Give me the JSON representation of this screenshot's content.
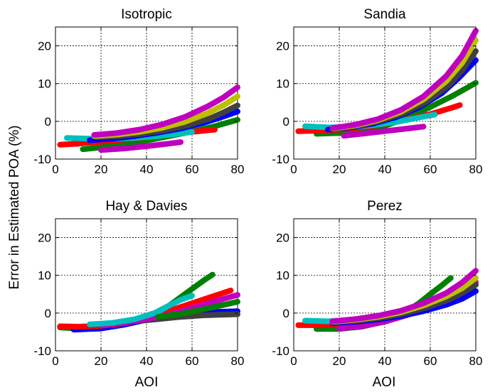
{
  "ylabel": "Error in Estimated POA (%)",
  "xlabel": "AOI",
  "chart_data": [
    {
      "type": "line",
      "title": "Isotropic",
      "xlim": [
        0,
        80
      ],
      "ylim": [
        -10,
        25
      ],
      "xticks": [
        0,
        20,
        40,
        60,
        80
      ],
      "yticks": [
        -10,
        0,
        10,
        20
      ],
      "grid": true,
      "series": [
        {
          "color": "#008000",
          "x": [
            12,
            20,
            30,
            40,
            50,
            60,
            70,
            80
          ],
          "y": [
            -7.4,
            -6.9,
            -6.1,
            -5.1,
            -3.9,
            -2.7,
            -1.3,
            0.4
          ]
        },
        {
          "color": "#ff0000",
          "x": [
            2,
            10,
            20,
            30,
            40,
            50,
            60,
            70
          ],
          "y": [
            -6.2,
            -5.9,
            -5.4,
            -4.8,
            -4.2,
            -3.5,
            -2.8,
            -2.2
          ]
        },
        {
          "color": "#bf00bf",
          "x": [
            20,
            30,
            40,
            50,
            55
          ],
          "y": [
            -7.6,
            -7.2,
            -6.6,
            -5.9,
            -5.5
          ]
        },
        {
          "color": "#00bfbf",
          "x": [
            5,
            15,
            25,
            35,
            45,
            55,
            60
          ],
          "y": [
            -4.4,
            -4.6,
            -4.6,
            -4.4,
            -3.9,
            -3.2,
            -2.8
          ]
        },
        {
          "color": "#0000ff",
          "x": [
            15,
            25,
            35,
            45,
            55,
            65,
            72,
            80
          ],
          "y": [
            -5.0,
            -4.6,
            -3.9,
            -3.0,
            -1.9,
            -0.4,
            0.9,
            2.6
          ]
        },
        {
          "color": "#404040",
          "x": [
            18,
            28,
            38,
            48,
            58,
            68,
            74,
            80
          ],
          "y": [
            -4.2,
            -3.9,
            -3.3,
            -2.4,
            -1.1,
            0.8,
            2.4,
            4.2
          ]
        },
        {
          "color": "#bfbf00",
          "x": [
            17,
            27,
            37,
            47,
            57,
            67,
            74,
            80
          ],
          "y": [
            -3.9,
            -3.5,
            -2.8,
            -1.7,
            -0.1,
            2.2,
            4.3,
            6.6
          ]
        },
        {
          "color": "#bf00bf",
          "x": [
            17,
            27,
            37,
            47,
            57,
            67,
            74,
            80
          ],
          "y": [
            -3.6,
            -3.1,
            -2.2,
            -0.8,
            1.2,
            4.0,
            6.4,
            9.0
          ]
        }
      ]
    },
    {
      "type": "line",
      "title": "Sandia",
      "xlim": [
        0,
        80
      ],
      "ylim": [
        -10,
        25
      ],
      "xticks": [
        0,
        20,
        40,
        60,
        80
      ],
      "yticks": [
        -10,
        0,
        10,
        20
      ],
      "grid": true,
      "series": [
        {
          "color": "#008000",
          "x": [
            10,
            20,
            30,
            40,
            50,
            60,
            70,
            80
          ],
          "y": [
            -3.3,
            -3.1,
            -2.5,
            -1.2,
            0.9,
            3.8,
            6.8,
            10.2
          ]
        },
        {
          "color": "#ff0000",
          "x": [
            2,
            10,
            20,
            30,
            40,
            50,
            60,
            70,
            73
          ],
          "y": [
            -2.6,
            -2.5,
            -2.2,
            -1.6,
            -0.7,
            0.5,
            1.9,
            3.7,
            4.3
          ]
        },
        {
          "color": "#bf00bf",
          "x": [
            22,
            30,
            40,
            50,
            57
          ],
          "y": [
            -3.8,
            -3.3,
            -2.6,
            -1.9,
            -1.4
          ]
        },
        {
          "color": "#00bfbf",
          "x": [
            5,
            15,
            25,
            35,
            45,
            55,
            62
          ],
          "y": [
            -1.3,
            -1.6,
            -1.5,
            -1.0,
            -0.2,
            1.0,
            1.8
          ]
        },
        {
          "color": "#0000ff",
          "x": [
            15,
            25,
            35,
            45,
            55,
            65,
            72,
            80
          ],
          "y": [
            -2.2,
            -1.6,
            -0.6,
            1.1,
            3.7,
            7.4,
            11.2,
            16.2
          ]
        },
        {
          "color": "#404040",
          "x": [
            18,
            28,
            38,
            48,
            58,
            68,
            74,
            80
          ],
          "y": [
            -2.0,
            -1.2,
            0.1,
            2.1,
            5.1,
            9.5,
            13.5,
            18.6
          ]
        },
        {
          "color": "#bfbf00",
          "x": [
            17,
            27,
            37,
            47,
            57,
            67,
            74,
            80
          ],
          "y": [
            -1.9,
            -1.1,
            0.3,
            2.5,
            5.8,
            10.6,
            15.5,
            21.5
          ]
        },
        {
          "color": "#bf00bf",
          "x": [
            17,
            27,
            37,
            47,
            57,
            67,
            74,
            80
          ],
          "y": [
            -1.8,
            -0.9,
            0.6,
            3.0,
            6.6,
            12.0,
            17.4,
            24.0
          ]
        }
      ]
    },
    {
      "type": "line",
      "title": "Hay & Davies",
      "xlim": [
        0,
        80
      ],
      "ylim": [
        -10,
        25
      ],
      "xticks": [
        0,
        20,
        40,
        60,
        80
      ],
      "yticks": [
        -10,
        0,
        10,
        20
      ],
      "grid": true,
      "series": [
        {
          "color": "#008000",
          "x": [
            2,
            10,
            20,
            30,
            40,
            50,
            55,
            60,
            65,
            69
          ],
          "y": [
            -3.8,
            -4.1,
            -4.0,
            -3.1,
            -1.2,
            2.0,
            4.2,
            6.4,
            8.6,
            10.2
          ]
        },
        {
          "color": "#0000ff",
          "x": [
            8,
            20,
            30,
            40,
            50,
            60,
            70,
            80
          ],
          "y": [
            -4.4,
            -4.1,
            -3.1,
            -1.8,
            -0.8,
            -0.1,
            0.3,
            0.5
          ]
        },
        {
          "color": "#404040",
          "x": [
            25,
            35,
            45,
            55,
            65,
            75,
            80
          ],
          "y": [
            -2.8,
            -2.2,
            -1.6,
            -1.0,
            -0.6,
            -0.4,
            -0.3
          ]
        },
        {
          "color": "#ff0000",
          "x": [
            2,
            10,
            20,
            30,
            40,
            50,
            60,
            70,
            77
          ],
          "y": [
            -3.5,
            -3.6,
            -3.4,
            -2.7,
            -1.4,
            0.6,
            2.6,
            4.6,
            6.0
          ]
        },
        {
          "color": "#bf00bf",
          "x": [
            20,
            30,
            40,
            50,
            60,
            70,
            80
          ],
          "y": [
            -3.2,
            -2.6,
            -1.6,
            -0.4,
            1.3,
            3.1,
            4.8
          ]
        },
        {
          "color": "#00bfbf",
          "x": [
            15,
            25,
            35,
            45,
            50,
            55,
            60
          ],
          "y": [
            -3.0,
            -2.6,
            -1.6,
            0.3,
            2.0,
            3.5,
            4.6
          ]
        },
        {
          "color": "#008000",
          "x": [
            45,
            55,
            65,
            75,
            80
          ],
          "y": [
            -1.0,
            -0.2,
            1.0,
            2.3,
            3.0
          ]
        }
      ]
    },
    {
      "type": "line",
      "title": "Perez",
      "xlim": [
        0,
        80
      ],
      "ylim": [
        -10,
        25
      ],
      "xticks": [
        0,
        20,
        40,
        60,
        80
      ],
      "yticks": [
        -10,
        0,
        10,
        20
      ],
      "grid": true,
      "series": [
        {
          "color": "#008000",
          "x": [
            10,
            20,
            30,
            40,
            50,
            55,
            60,
            65,
            69
          ],
          "y": [
            -4.2,
            -4.2,
            -3.6,
            -2.2,
            0.6,
            2.6,
            5.0,
            7.3,
            9.3
          ]
        },
        {
          "color": "#ff0000",
          "x": [
            2,
            10,
            20,
            30,
            40,
            50,
            60,
            70,
            73
          ],
          "y": [
            -3.2,
            -3.2,
            -2.9,
            -2.4,
            -1.6,
            -0.4,
            1.3,
            3.4,
            4.2
          ]
        },
        {
          "color": "#bf00bf",
          "x": [
            20,
            30,
            40,
            50,
            60,
            70,
            80
          ],
          "y": [
            -4.1,
            -3.5,
            -2.3,
            -0.5,
            2.0,
            5.0,
            8.2
          ]
        },
        {
          "color": "#00bfbf",
          "x": [
            5,
            15,
            25,
            35,
            45,
            55,
            60
          ],
          "y": [
            -2.0,
            -2.2,
            -1.8,
            -1.0,
            0.1,
            1.4,
            2.1
          ]
        },
        {
          "color": "#0000ff",
          "x": [
            17,
            27,
            37,
            47,
            57,
            67,
            74,
            80
          ],
          "y": [
            -2.6,
            -2.3,
            -1.7,
            -0.8,
            0.5,
            2.2,
            3.8,
            5.8
          ]
        },
        {
          "color": "#404040",
          "x": [
            18,
            28,
            38,
            48,
            58,
            68,
            74,
            80
          ],
          "y": [
            -2.4,
            -2.0,
            -1.3,
            -0.2,
            1.4,
            3.5,
            5.3,
            7.5
          ]
        },
        {
          "color": "#bfbf00",
          "x": [
            17,
            27,
            37,
            47,
            57,
            67,
            74,
            80
          ],
          "y": [
            -2.3,
            -1.8,
            -1.0,
            0.2,
            2.0,
            4.4,
            6.6,
            9.3
          ]
        },
        {
          "color": "#bf00bf",
          "x": [
            17,
            27,
            37,
            47,
            57,
            67,
            74,
            80
          ],
          "y": [
            -2.2,
            -1.6,
            -0.7,
            0.6,
            2.6,
            5.3,
            8.1,
            11.2
          ]
        }
      ]
    }
  ]
}
